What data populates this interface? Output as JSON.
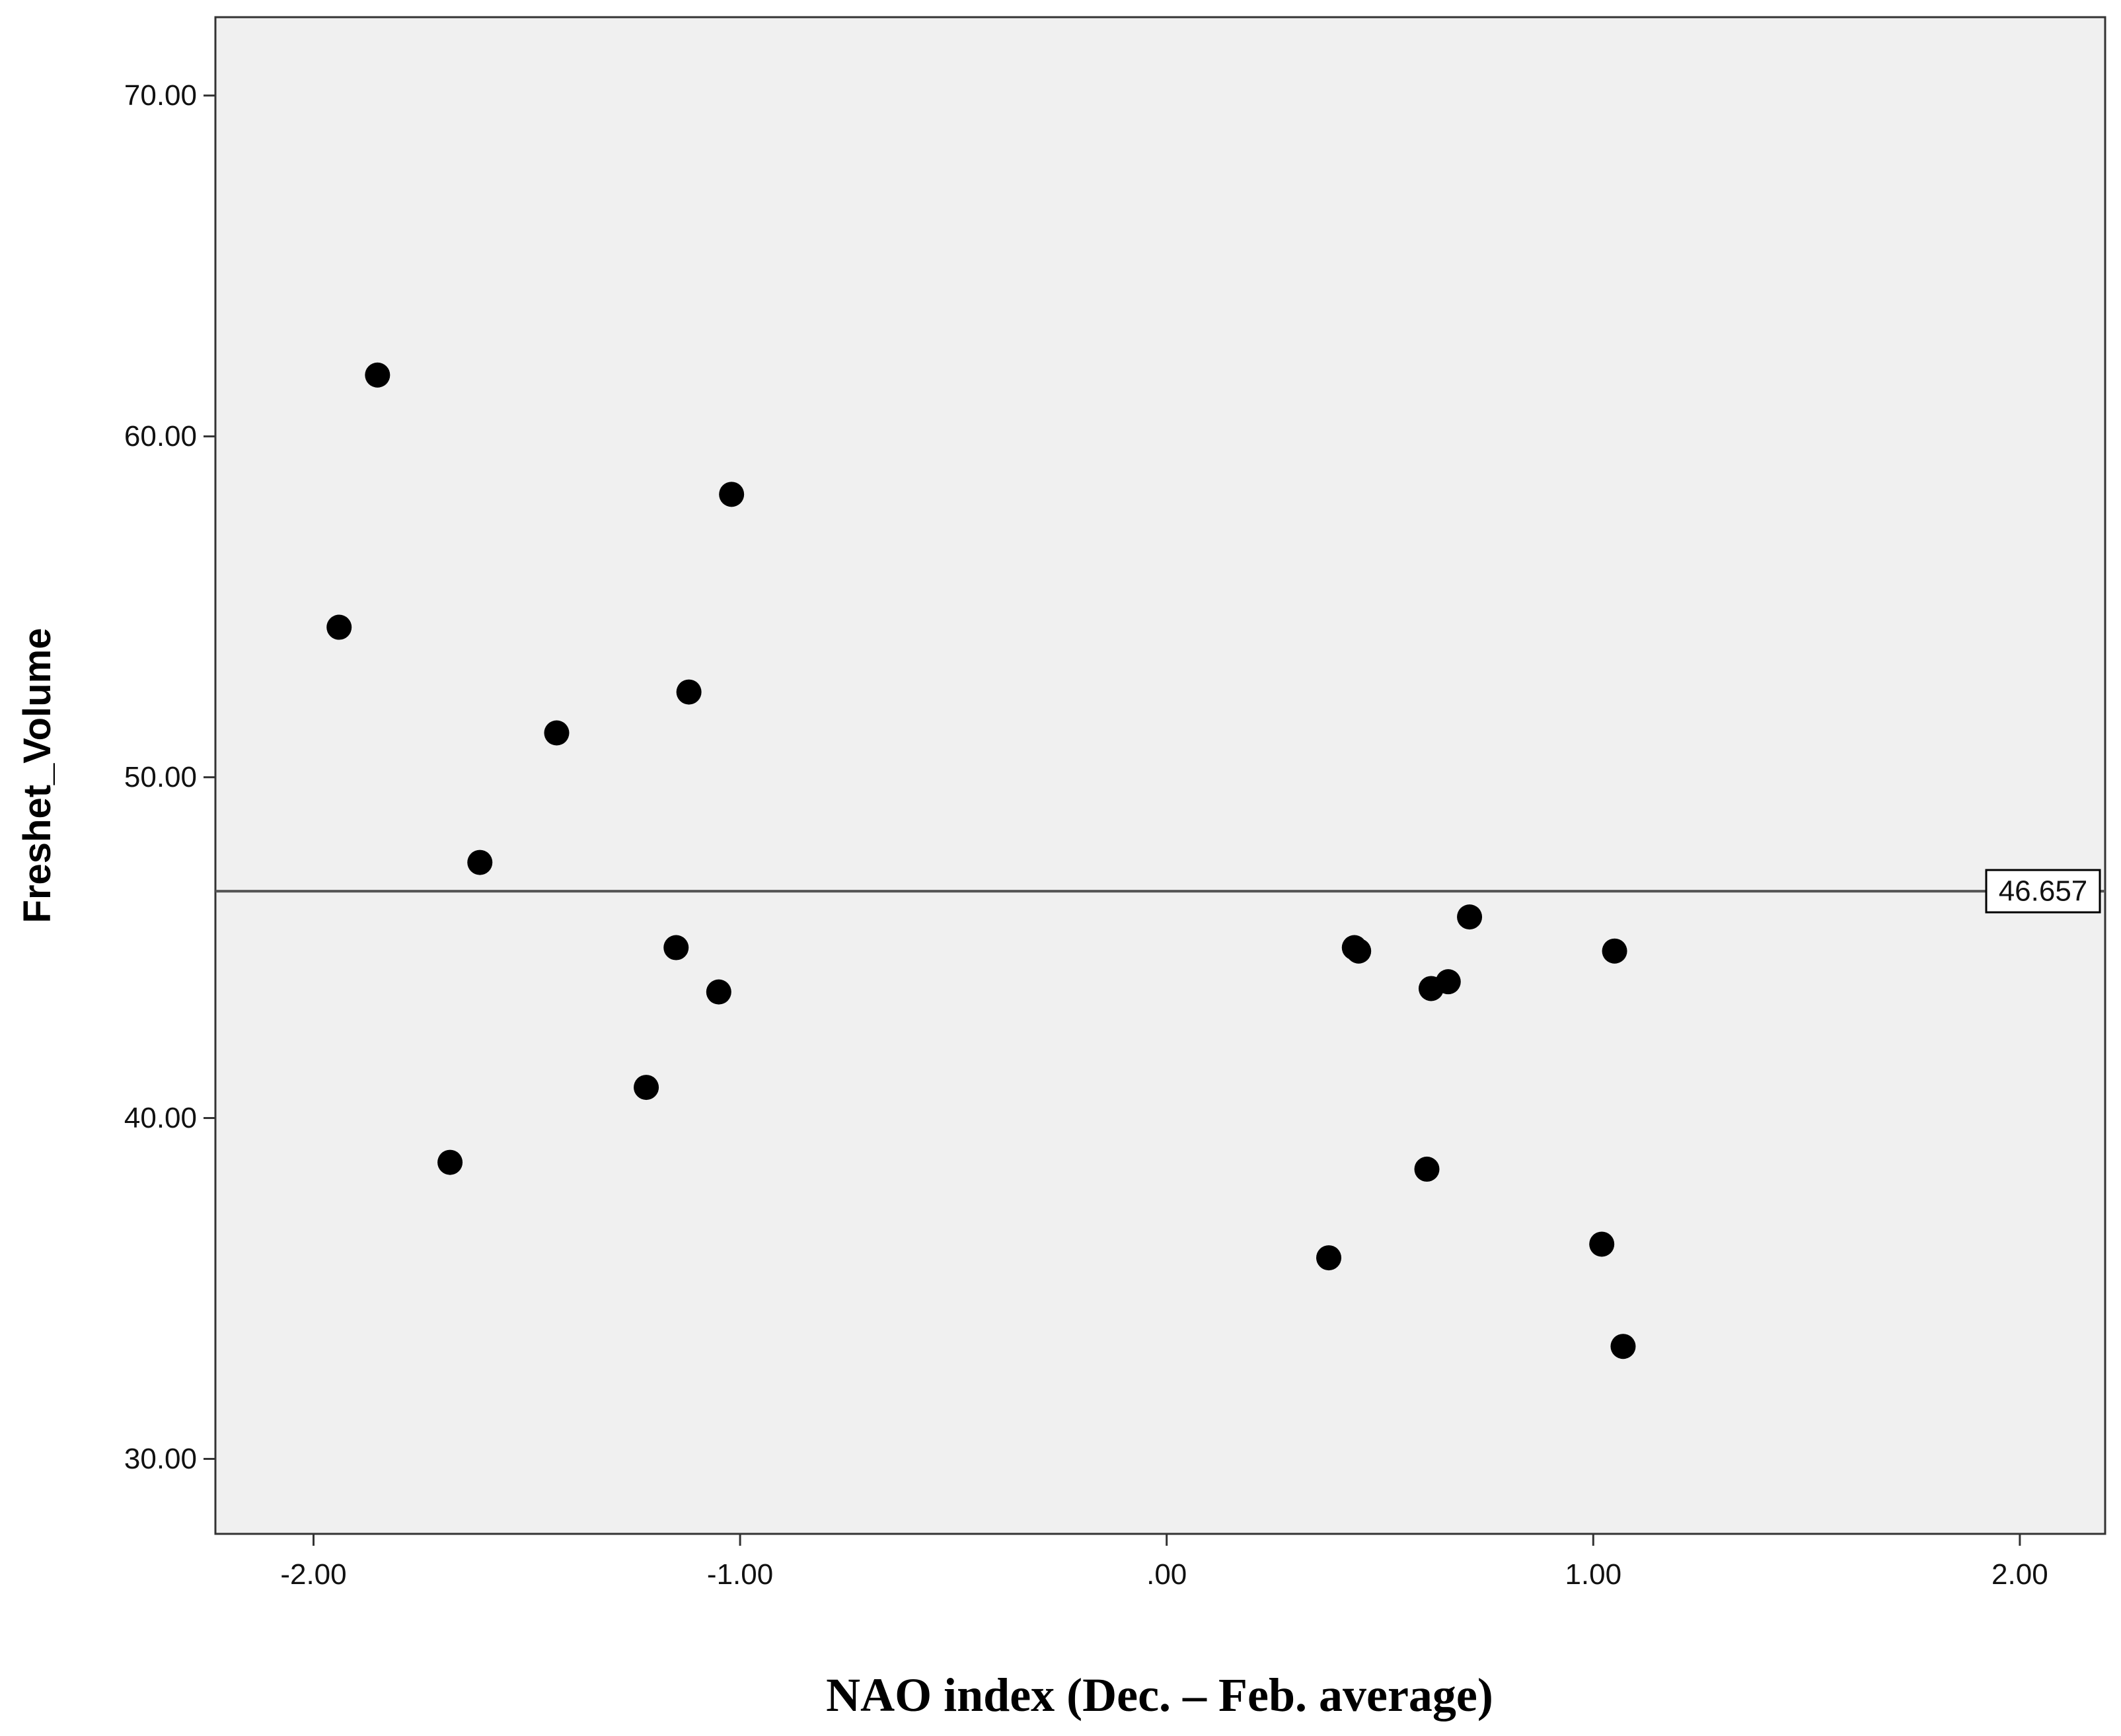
{
  "chart_data": {
    "type": "scatter",
    "xlabel": "NAO index (Dec. – Feb. average)",
    "ylabel": "Freshet_Volume",
    "xlim": [
      -2.23,
      2.2
    ],
    "ylim": [
      27.8,
      72.3
    ],
    "x_ticks": [
      -2.0,
      -1.0,
      0.0,
      1.0,
      2.0
    ],
    "x_tick_labels": [
      "-2.00",
      "-1.00",
      ".00",
      "1.00",
      "2.00"
    ],
    "y_ticks": [
      30.0,
      40.0,
      50.0,
      60.0,
      70.0
    ],
    "y_tick_labels": [
      "30.00",
      "40.00",
      "50.00",
      "60.00",
      "70.00"
    ],
    "grid": false,
    "reference_line": {
      "y": 46.657,
      "label": "46.657"
    },
    "colors": {
      "plot_background": "#f0f0f0",
      "marker": "#000000",
      "line": "#555555"
    },
    "points": [
      {
        "x": -1.85,
        "y": 61.8
      },
      {
        "x": -1.94,
        "y": 54.4
      },
      {
        "x": -1.02,
        "y": 58.3
      },
      {
        "x": -1.12,
        "y": 52.5
      },
      {
        "x": -1.43,
        "y": 51.3
      },
      {
        "x": -1.61,
        "y": 47.5
      },
      {
        "x": -1.15,
        "y": 45.0
      },
      {
        "x": -1.05,
        "y": 43.7
      },
      {
        "x": -1.22,
        "y": 40.9
      },
      {
        "x": -1.68,
        "y": 38.7
      },
      {
        "x": 0.44,
        "y": 45.0
      },
      {
        "x": 0.45,
        "y": 44.9
      },
      {
        "x": 0.71,
        "y": 45.9
      },
      {
        "x": 0.62,
        "y": 43.8
      },
      {
        "x": 0.66,
        "y": 44.0
      },
      {
        "x": 1.05,
        "y": 44.9
      },
      {
        "x": 0.61,
        "y": 38.5
      },
      {
        "x": 0.38,
        "y": 35.9
      },
      {
        "x": 1.02,
        "y": 36.3
      },
      {
        "x": 1.07,
        "y": 33.3
      }
    ]
  }
}
